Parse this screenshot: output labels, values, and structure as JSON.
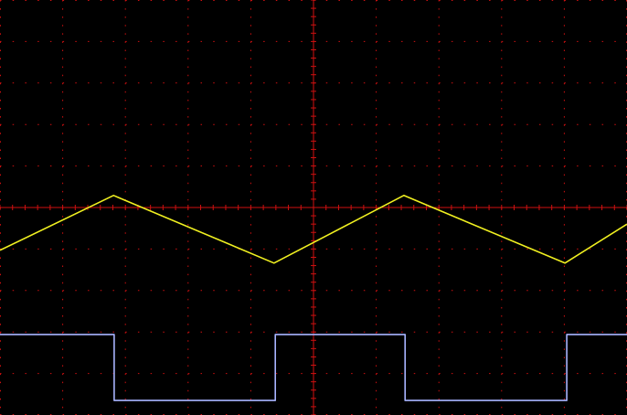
{
  "screen": {
    "xdivs": 10,
    "ydivs": 10,
    "grid_color": "#d01010",
    "background": "#000000"
  },
  "traces": [
    {
      "color": "#f0f020",
      "x": [
        0,
        1.81,
        4.37,
        6.44,
        9.01,
        10
      ],
      "y": [
        6.03,
        4.71,
        6.34,
        4.71,
        6.34,
        5.4
      ]
    },
    {
      "color": "#a8b4ff",
      "x": [
        0,
        1.82,
        1.82,
        4.39,
        4.39,
        6.46,
        6.46,
        9.04,
        9.04,
        10
      ],
      "y": [
        8.06,
        8.06,
        9.65,
        9.65,
        8.06,
        8.06,
        9.65,
        9.65,
        8.06,
        8.06
      ]
    }
  ]
}
